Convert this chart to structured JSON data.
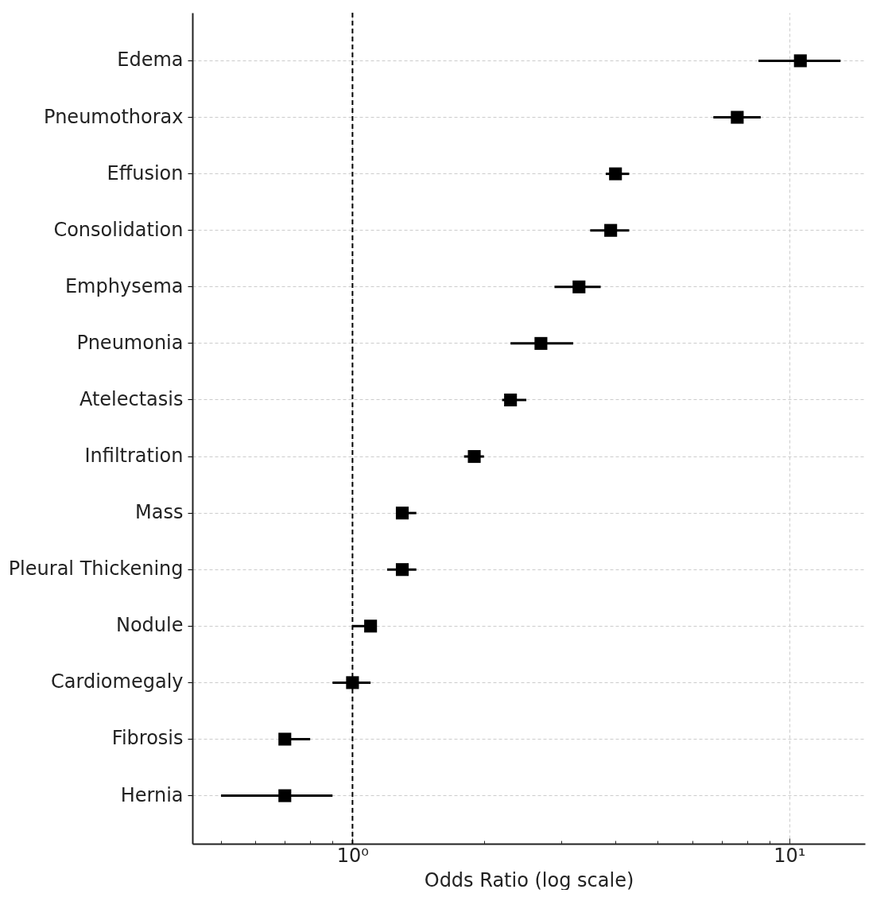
{
  "chart_data": {
    "type": "scatter",
    "xlabel": "Odds Ratio (log scale)",
    "categories": [
      "Edema",
      "Pneumothorax",
      "Effusion",
      "Consolidation",
      "Emphysema",
      "Pneumonia",
      "Atelectasis",
      "Infiltration",
      "Mass",
      "Pleural Thickening",
      "Nodule",
      "Cardiomegaly",
      "Fibrosis",
      "Hernia"
    ],
    "orientation": "horizontal",
    "values": [
      10.6,
      7.6,
      4.0,
      3.9,
      3.3,
      2.7,
      2.3,
      1.9,
      1.3,
      1.3,
      1.1,
      1.0,
      0.7,
      0.7
    ],
    "errors": [
      [
        8.5,
        13.1
      ],
      [
        6.7,
        8.6
      ],
      [
        3.8,
        4.3
      ],
      [
        3.5,
        4.3
      ],
      [
        2.9,
        3.7
      ],
      [
        2.3,
        3.2
      ],
      [
        2.2,
        2.5
      ],
      [
        1.8,
        2.0
      ],
      [
        1.27,
        1.4
      ],
      [
        1.2,
        1.4
      ],
      [
        1.0,
        1.1
      ],
      [
        0.9,
        1.1
      ],
      [
        0.7,
        0.8
      ],
      [
        0.5,
        0.9
      ]
    ],
    "color": "#000000",
    "marker": "square",
    "log": "x",
    "grid": true,
    "xlim": [
      0.43,
      14.9
    ],
    "xticks": [
      {
        "value": 0.5,
        "label": null
      },
      {
        "value": 0.6,
        "label": null
      },
      {
        "value": 0.7,
        "label": null
      },
      {
        "value": 0.8,
        "label": null
      },
      {
        "value": 0.9,
        "label": null
      },
      {
        "value": 1,
        "label": "10⁰"
      },
      {
        "value": 2,
        "label": null
      },
      {
        "value": 3,
        "label": null
      },
      {
        "value": 4,
        "label": null
      },
      {
        "value": 5,
        "label": null
      },
      {
        "value": 6,
        "label": null
      },
      {
        "value": 7,
        "label": null
      },
      {
        "value": 8,
        "label": null
      },
      {
        "value": 9,
        "label": null
      },
      {
        "value": 10,
        "label": "10¹"
      }
    ],
    "ref_lines": [
      {
        "axis": "x",
        "value": 1,
        "color": "#000000",
        "line_style": "dashed"
      }
    ]
  }
}
